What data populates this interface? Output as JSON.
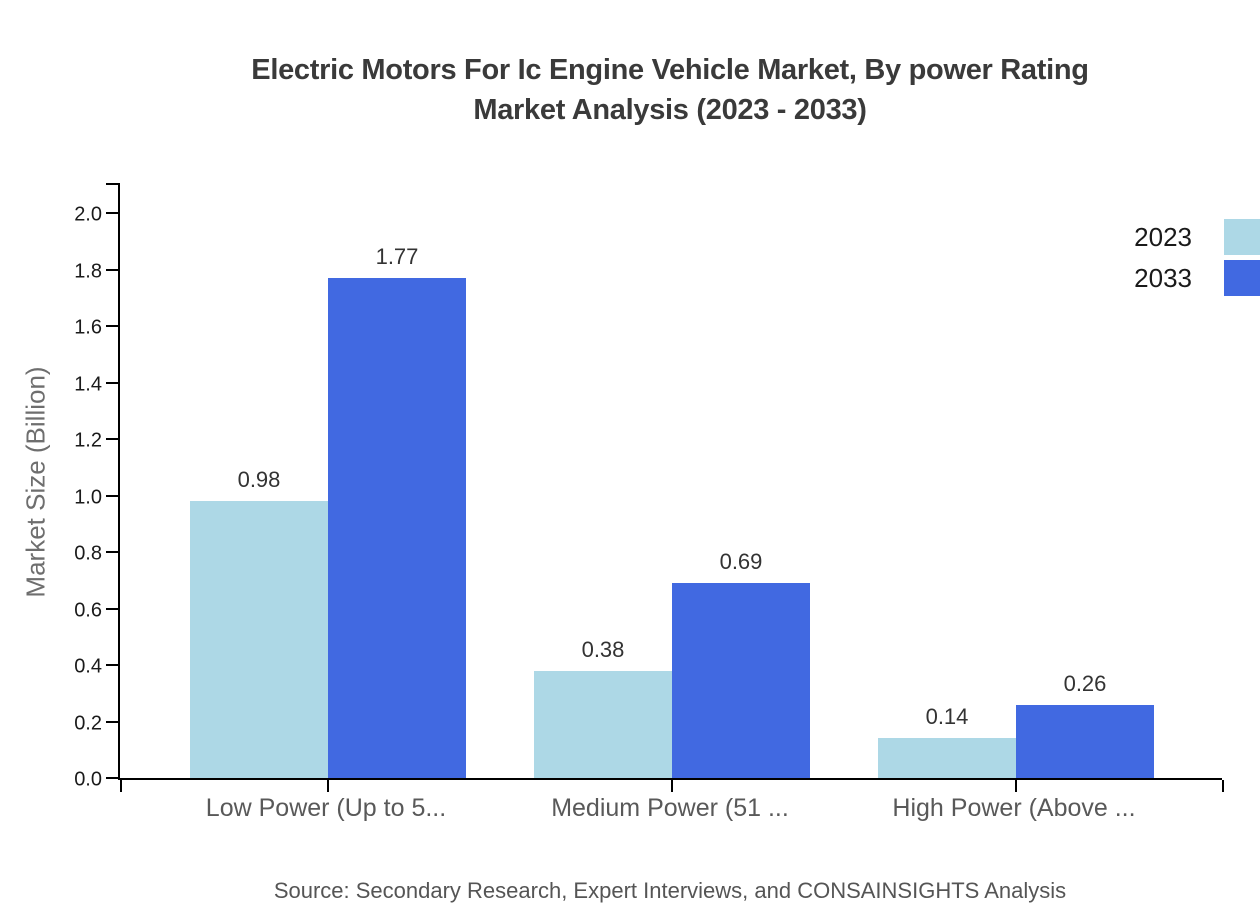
{
  "title": {
    "line1": "Electric Motors For Ic Engine Vehicle Market, By power Rating",
    "line2": "Market Analysis (2023 - 2033)"
  },
  "source": "Source: Secondary Research, Expert Interviews, and CONSAINSIGHTS Analysis",
  "chart_data": {
    "type": "bar",
    "title": "Electric Motors For Ic Engine Vehicle Market, By power Rating Market Analysis (2023 - 2033)",
    "categories": [
      "Low Power (Up to 5...",
      "Medium Power (51 ...",
      "High Power (Above ..."
    ],
    "series": [
      {
        "name": "2023",
        "color": "#ADD8E6",
        "values": [
          0.98,
          0.38,
          0.14
        ]
      },
      {
        "name": "2033",
        "color": "#4169E1",
        "values": [
          1.77,
          0.69,
          0.26
        ]
      }
    ],
    "xlabel": "",
    "ylabel": "Market Size (Billion)",
    "ylim": [
      0.0,
      2.0
    ],
    "ytick_step": 0.2,
    "ytick_labels": [
      "0.0",
      "0.2",
      "0.4",
      "0.6",
      "0.8",
      "1.0",
      "1.2",
      "1.4",
      "1.6",
      "1.8",
      "2.0"
    ],
    "grid": false,
    "legend_position": "top-right",
    "bar_value_label_format": "0.00"
  }
}
